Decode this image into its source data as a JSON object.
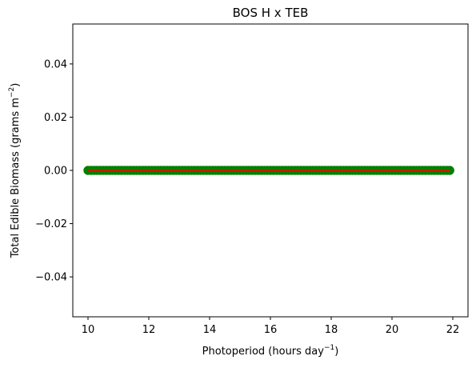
{
  "chart_data": {
    "type": "scatter",
    "title": "BOS H x TEB",
    "xlabel": "Photoperiod (hours day",
    "xlabel_sup": "−1",
    "xlabel_suffix": ")",
    "ylabel": "Total Edible Biomass (grams m",
    "ylabel_sup": "−2",
    "ylabel_suffix": ")",
    "xlim": [
      9.5,
      22.5
    ],
    "ylim": [
      -0.055,
      0.055
    ],
    "xticks": [
      10,
      12,
      14,
      16,
      18,
      20,
      22
    ],
    "xtick_labels": [
      "10",
      "12",
      "14",
      "16",
      "18",
      "20",
      "22"
    ],
    "yticks": [
      -0.04,
      -0.02,
      0.0,
      0.02,
      0.04
    ],
    "ytick_labels": [
      "−0.04",
      "−0.02",
      "0.00",
      "0.02",
      "0.04"
    ],
    "grid": false,
    "series": [
      {
        "kind": "scatter",
        "color": "#008000",
        "x_start": 10.0,
        "x_end": 21.9,
        "x_step": 0.1,
        "y": 0.0
      },
      {
        "kind": "line",
        "color": "#ff0000",
        "x": [
          10.0,
          21.9
        ],
        "y": [
          0.0,
          0.0
        ]
      }
    ]
  }
}
